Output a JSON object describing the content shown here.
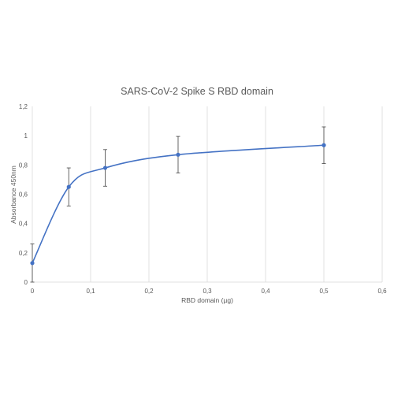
{
  "chart_data": {
    "type": "scatter",
    "title": "SARS-CoV-2 Spike S RBD domain",
    "xlabel": "RBD domain (µg)",
    "ylabel": "Absorbance 450nm",
    "xlim": [
      0,
      0.6
    ],
    "ylim": [
      0,
      1.2
    ],
    "x_ticks": [
      "0",
      "0,1",
      "0,2",
      "0,3",
      "0,4",
      "0,5",
      "0,6"
    ],
    "y_ticks": [
      "0",
      "0,2",
      "0,4",
      "0,6",
      "0,8",
      "1",
      "1,2"
    ],
    "grid": "vertical",
    "line": "smooth",
    "series": [
      {
        "x": [
          0,
          0.0625,
          0.125,
          0.25,
          0.5
        ],
        "y": [
          0.13,
          0.65,
          0.78,
          0.87,
          0.935
        ],
        "error": [
          0.13,
          0.13,
          0.125,
          0.125,
          0.125
        ]
      }
    ],
    "colors": {
      "series": "#4472c4",
      "grid": "#d9d9d9",
      "error_bar": "#404040",
      "text": "#595959"
    }
  }
}
